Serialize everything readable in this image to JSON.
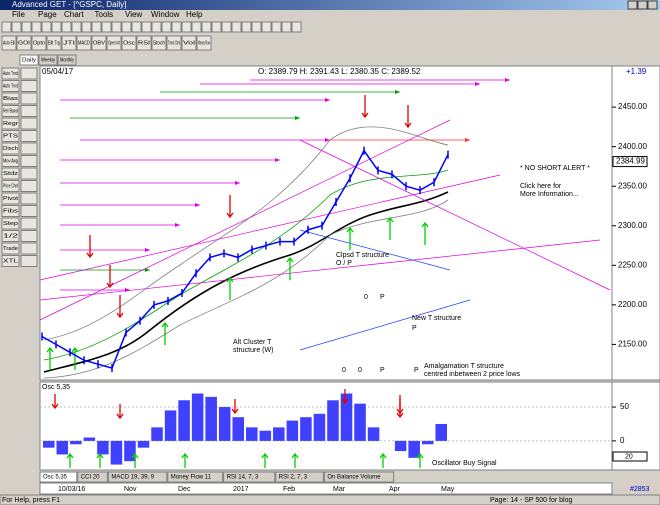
{
  "window": {
    "title": "Advanced GET - [^GSPC, Daily]"
  },
  "menu": [
    "File",
    "Page",
    "Chart",
    "Tools",
    "View",
    "Window",
    "Help"
  ],
  "toolbar": [
    "Auto Elli",
    "GOI",
    "Optn",
    "Ellt Trg",
    "JTI",
    "MACD",
    "OBV",
    "Open Int",
    "Osc",
    "RSI",
    "Stoch",
    "Trend Chnl",
    "Vol",
    "Money Flow"
  ],
  "timeframe_tabs": [
    "Daily",
    "Weekly",
    "Monthly"
  ],
  "side_tools": [
    "Auto Trnd",
    "Auto Trnd",
    "Bias",
    "Rel Band",
    "Regr",
    "PTS",
    "Disch",
    "Mov Avg",
    "Stdz",
    "Price Chnl",
    "Pivot",
    "Fibs",
    "Step",
    "1/2",
    "Trade",
    "XTL"
  ],
  "chart_data": {
    "type": "line",
    "color": "#0000ff",
    "header": {
      "date": "05/04/17",
      "ohlc": "O: 2389.79   H: 2391.43   L: 2380.35   C: 2389.52",
      "change": "+1.39"
    },
    "last_price": "2384.99",
    "ylim": [
      2105,
      2502
    ],
    "yticks": [
      {
        "value": 2450,
        "label": "2450.00"
      },
      {
        "value": 2400,
        "label": "2400.00"
      },
      {
        "value": 2350,
        "label": "2350.00"
      },
      {
        "value": 2300,
        "label": "2300.00"
      },
      {
        "value": 2250,
        "label": "2250.00"
      },
      {
        "value": 2200,
        "label": "2200.00"
      },
      {
        "value": 2150,
        "label": "2150.00"
      }
    ],
    "values": [
      2160,
      2150,
      2140,
      2130,
      2125,
      2120,
      2165,
      2180,
      2200,
      2205,
      2215,
      2240,
      2260,
      2265,
      2260,
      2270,
      2275,
      2280,
      2280,
      2295,
      2300,
      2330,
      2360,
      2395,
      2370,
      2365,
      2350,
      2345,
      2355,
      2390
    ],
    "x_labels": [
      "10/03/16",
      "Nov",
      "Dec",
      "2017",
      "Feb",
      "Mar",
      "Apr",
      "May"
    ],
    "annotations": [
      "* NO SHORT ALERT *",
      "Click here for",
      "More Information...",
      "Clpsd T structure",
      "O / P",
      "0",
      "P",
      "New T structure",
      "P",
      "Alt Cluster T",
      "structure (W)",
      "Amalgamation T structure",
      "centred inbetween 2 price lows",
      "0",
      "0",
      "P",
      "P"
    ]
  },
  "oscillator": {
    "type": "bar",
    "title": "Osc 5,35",
    "color": "#4040ff",
    "ylim": [
      -43,
      87
    ],
    "yticks": [
      50,
      0
    ],
    "level_box": "20",
    "values": [
      -10,
      -20,
      -5,
      5,
      -20,
      -35,
      -30,
      -10,
      20,
      45,
      60,
      70,
      65,
      50,
      35,
      20,
      15,
      20,
      30,
      35,
      40,
      60,
      70,
      55,
      20,
      0,
      -15,
      -25,
      -5,
      25
    ],
    "annotation": "Oscillator Buy Signal"
  },
  "indicator_tabs": [
    "Osc 5,35",
    "CCI 20",
    "MACD 19, 39, 9",
    "Money Flow 11",
    "RSI 14, 7, 3",
    "RSI 2, 7, 3",
    "On Balance Volume"
  ],
  "status": {
    "help": "For Help, press F1",
    "page": "Page: 14 - SP 500 for blog",
    "id": "#2853"
  }
}
